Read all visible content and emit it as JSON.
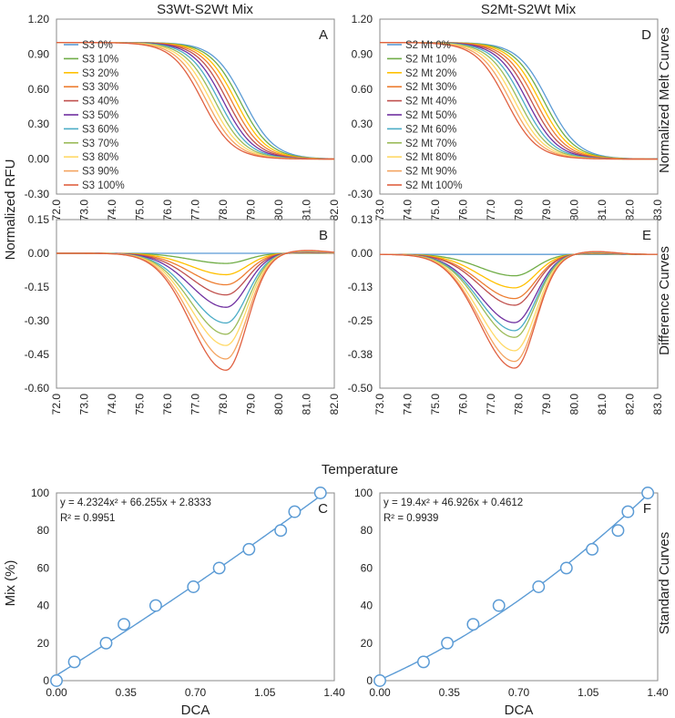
{
  "figure": {
    "title_left": "S3Wt-S2Wt Mix",
    "title_right": "S2Mt-S2Wt Mix",
    "ylabel_top": "Normalized RFU",
    "xlabel_middle": "Temperature",
    "side_label_melt": "Normalized Melt Curves",
    "side_label_diff": "Difference Curves",
    "side_label_std": "Standard Curves",
    "ylabel_bottom": "Mix (%)"
  },
  "colors": {
    "series": [
      "#5b9bd5",
      "#70ad47",
      "#ffc000",
      "#ed7d31",
      "#c0504d",
      "#7030a0",
      "#4bacc6",
      "#9bbb59",
      "#ffd966",
      "#f4a460",
      "#e06040"
    ],
    "fit": "#5b9bd5",
    "marker": "#5b9bd5"
  },
  "chart_data": [
    {
      "panel": "A",
      "type": "line",
      "title": "S3Wt-S2Wt Mix",
      "xlabel": "",
      "ylabel": "Normalized RFU",
      "xlim": [
        72.0,
        82.0
      ],
      "ylim": [
        -0.3,
        1.2
      ],
      "xticks": [
        "72.0",
        "73.0",
        "74.0",
        "75.0",
        "76.0",
        "77.0",
        "78.0",
        "79.0",
        "80.0",
        "81.0",
        "82.0"
      ],
      "yticks": [
        "1.20",
        "0.90",
        "0.60",
        "0.30",
        "0.00",
        "-0.30"
      ],
      "legend": "top-left",
      "series": [
        {
          "name": "S3 0%",
          "tm": 78.75
        },
        {
          "name": "S3 10%",
          "tm": 78.6
        },
        {
          "name": "S3 20%",
          "tm": 78.45
        },
        {
          "name": "S3 30%",
          "tm": 78.3
        },
        {
          "name": "S3 40%",
          "tm": 78.15
        },
        {
          "name": "S3 50%",
          "tm": 78.0
        },
        {
          "name": "S3 60%",
          "tm": 77.85
        },
        {
          "name": "S3 70%",
          "tm": 77.7
        },
        {
          "name": "S3 80%",
          "tm": 77.55
        },
        {
          "name": "S3 90%",
          "tm": 77.4
        },
        {
          "name": "S3 100%",
          "tm": 77.25
        }
      ]
    },
    {
      "panel": "B",
      "type": "line",
      "xlim": [
        72.0,
        82.0
      ],
      "ylim": [
        -0.6,
        0.15
      ],
      "xticks": [
        "72.0",
        "73.0",
        "74.0",
        "75.0",
        "76.0",
        "77.0",
        "78.0",
        "79.0",
        "80.0",
        "81.0",
        "82.0"
      ],
      "yticks": [
        "0.15",
        "0.00",
        "-0.15",
        "-0.30",
        "-0.45",
        "-0.60"
      ],
      "center": 78.1,
      "series": [
        {
          "name": "S3 0%",
          "min": 0.0
        },
        {
          "name": "S3 10%",
          "min": -0.045
        },
        {
          "name": "S3 20%",
          "min": -0.095
        },
        {
          "name": "S3 30%",
          "min": -0.14
        },
        {
          "name": "S3 40%",
          "min": -0.185
        },
        {
          "name": "S3 50%",
          "min": -0.24
        },
        {
          "name": "S3 60%",
          "min": -0.31
        },
        {
          "name": "S3 70%",
          "min": -0.36
        },
        {
          "name": "S3 80%",
          "min": -0.41
        },
        {
          "name": "S3 90%",
          "min": -0.47
        },
        {
          "name": "S3 100%",
          "min": -0.52
        }
      ]
    },
    {
      "panel": "C",
      "type": "scatter",
      "xlabel": "DCA",
      "ylabel": "Mix (%)",
      "xlim": [
        0.0,
        1.4
      ],
      "ylim": [
        0,
        100
      ],
      "xticks": [
        "0.00",
        "0.35",
        "0.70",
        "1.05",
        "1.40"
      ],
      "yticks": [
        "100",
        "80",
        "60",
        "40",
        "20",
        "0"
      ],
      "equation": "y = 4.2324x² + 66.255x + 2.8333",
      "r2": "R² = 0.9951",
      "fit": [
        4.2324,
        66.255,
        2.8333
      ],
      "points": [
        [
          0.0,
          0
        ],
        [
          0.09,
          10
        ],
        [
          0.25,
          20
        ],
        [
          0.34,
          30
        ],
        [
          0.5,
          40
        ],
        [
          0.69,
          50
        ],
        [
          0.82,
          60
        ],
        [
          0.97,
          70
        ],
        [
          1.13,
          80
        ],
        [
          1.2,
          90
        ],
        [
          1.33,
          100
        ]
      ]
    },
    {
      "panel": "D",
      "type": "line",
      "title": "S2Mt-S2Wt Mix",
      "xlim": [
        73.0,
        83.0
      ],
      "ylim": [
        -0.3,
        1.2
      ],
      "xticks": [
        "73.0",
        "74.0",
        "75.0",
        "76.0",
        "77.0",
        "78.0",
        "79.0",
        "80.0",
        "81.0",
        "82.0",
        "83.0"
      ],
      "yticks": [
        "1.20",
        "0.90",
        "0.60",
        "0.30",
        "0.00",
        "-0.30"
      ],
      "legend": "top-left",
      "series": [
        {
          "name": "S2 Mt 0%",
          "tm": 79.05
        },
        {
          "name": "S2 Mt 10%",
          "tm": 78.9
        },
        {
          "name": "S2 Mt 20%",
          "tm": 78.75
        },
        {
          "name": "S2 Mt 30%",
          "tm": 78.6
        },
        {
          "name": "S2 Mt 40%",
          "tm": 78.45
        },
        {
          "name": "S2 Mt 50%",
          "tm": 78.3
        },
        {
          "name": "S2 Mt 60%",
          "tm": 78.15
        },
        {
          "name": "S2 Mt 70%",
          "tm": 78.0
        },
        {
          "name": "S2 Mt 80%",
          "tm": 77.85
        },
        {
          "name": "S2 Mt 90%",
          "tm": 77.7
        },
        {
          "name": "S2 Mt 100%",
          "tm": 77.55
        }
      ]
    },
    {
      "panel": "E",
      "type": "line",
      "xlim": [
        73.0,
        83.0
      ],
      "ylim": [
        -0.5,
        0.13
      ],
      "xticks": [
        "73.0",
        "74.0",
        "75.0",
        "76.0",
        "77.0",
        "78.0",
        "79.0",
        "80.0",
        "81.0",
        "82.0",
        "83.0"
      ],
      "yticks": [
        "0.13",
        "0.00",
        "-0.13",
        "-0.25",
        "-0.38",
        "-0.50"
      ],
      "center": 77.85,
      "series": [
        {
          "name": "S2 Mt 0%",
          "min": 0.0
        },
        {
          "name": "S2 Mt 10%",
          "min": -0.08
        },
        {
          "name": "S2 Mt 20%",
          "min": -0.125
        },
        {
          "name": "S2 Mt 30%",
          "min": -0.165
        },
        {
          "name": "S2 Mt 40%",
          "min": -0.19
        },
        {
          "name": "S2 Mt 50%",
          "min": -0.255
        },
        {
          "name": "S2 Mt 60%",
          "min": -0.285
        },
        {
          "name": "S2 Mt 70%",
          "min": -0.31
        },
        {
          "name": "S2 Mt 80%",
          "min": -0.36
        },
        {
          "name": "S2 Mt 90%",
          "min": -0.4
        },
        {
          "name": "S2 Mt 100%",
          "min": -0.425
        }
      ]
    },
    {
      "panel": "F",
      "type": "scatter",
      "xlabel": "DCA",
      "xlim": [
        0.0,
        1.4
      ],
      "ylim": [
        0,
        100
      ],
      "xticks": [
        "0.00",
        "0.35",
        "0.70",
        "1.05",
        "1.40"
      ],
      "yticks": [
        "100",
        "80",
        "60",
        "40",
        "20",
        "0"
      ],
      "equation": "y = 19.4x² + 46.926x + 0.4612",
      "r2": "R² = 0.9939",
      "fit": [
        19.4,
        46.926,
        0.4612
      ],
      "points": [
        [
          0.0,
          0
        ],
        [
          0.22,
          10
        ],
        [
          0.34,
          20
        ],
        [
          0.47,
          30
        ],
        [
          0.6,
          40
        ],
        [
          0.8,
          50
        ],
        [
          0.94,
          60
        ],
        [
          1.07,
          70
        ],
        [
          1.2,
          80
        ],
        [
          1.25,
          90
        ],
        [
          1.35,
          100
        ]
      ]
    }
  ]
}
